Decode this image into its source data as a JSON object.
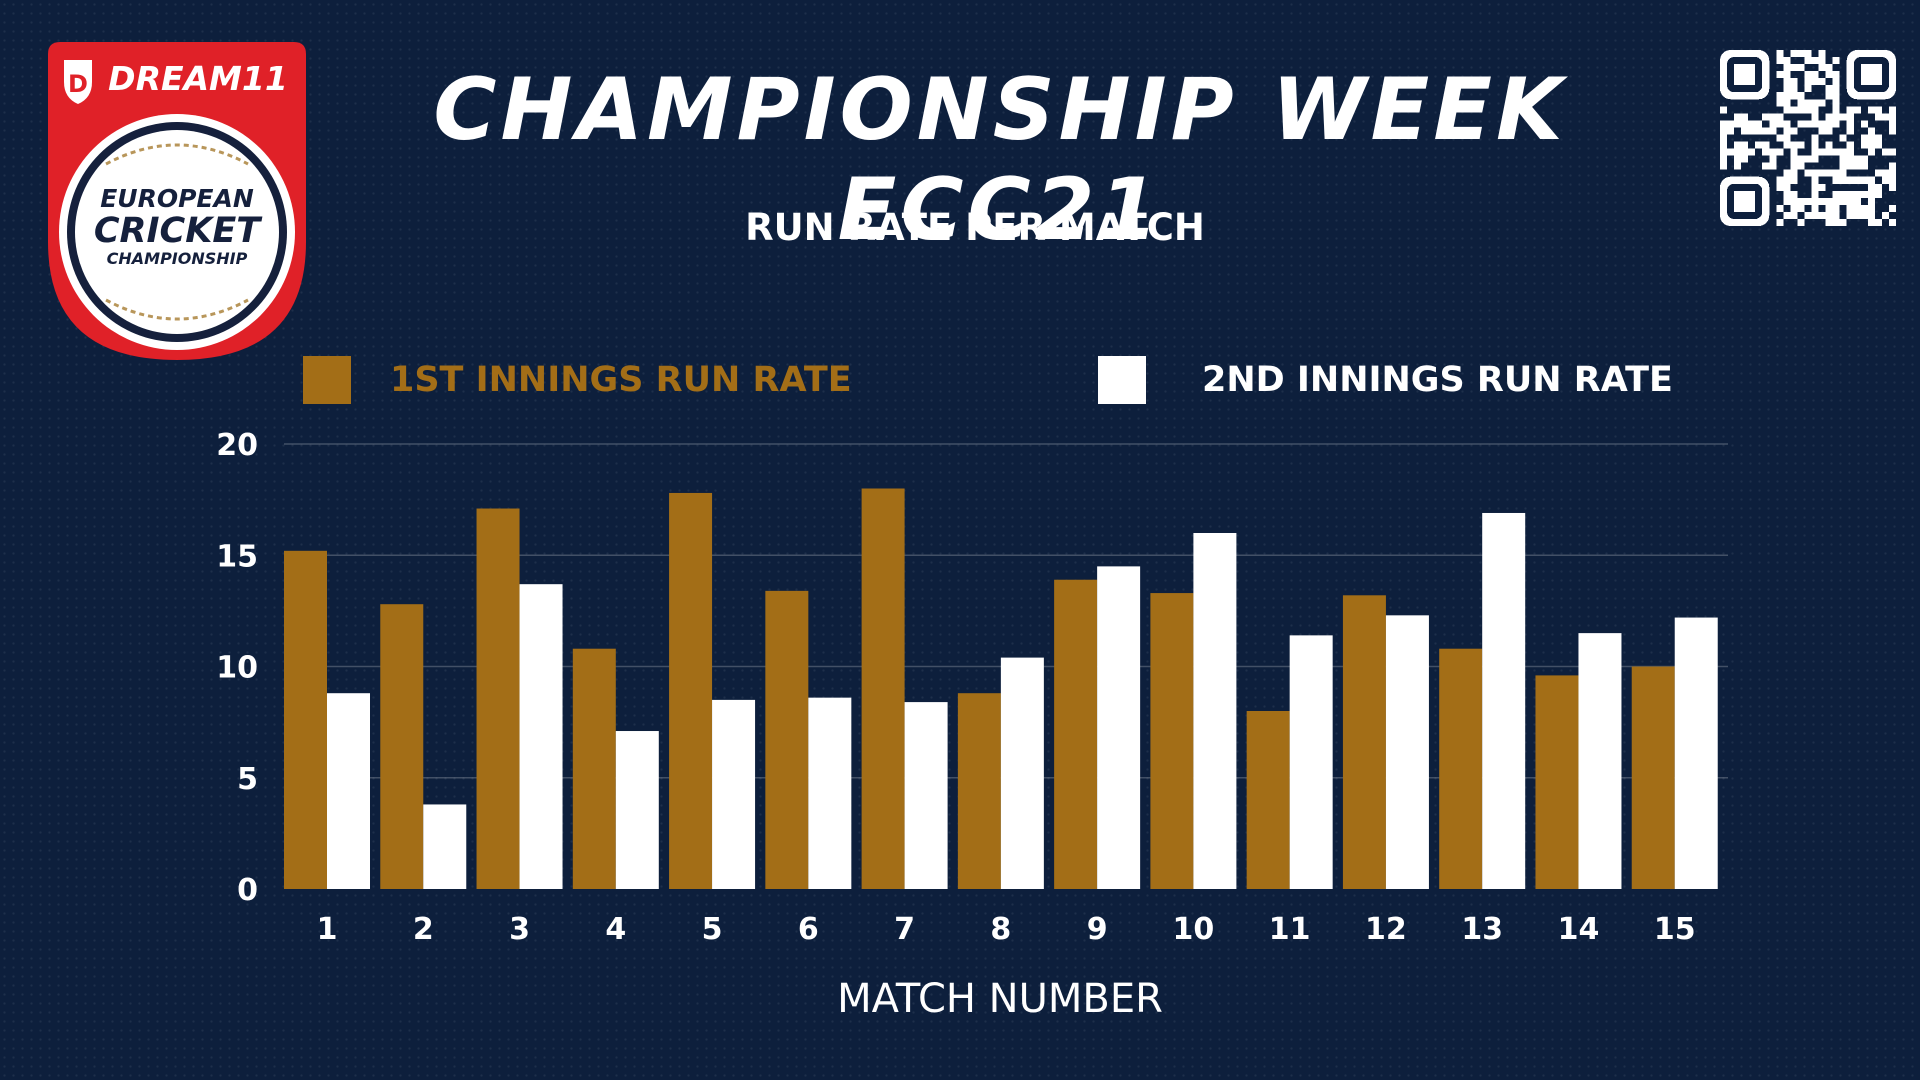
{
  "header": {
    "title": "CHAMPIONSHIP WEEK ECC21",
    "subtitle": "RUN RATE PER MATCH"
  },
  "logo": {
    "brand": "DREAM11",
    "line1": "EUROPEAN",
    "line2": "CRICKET",
    "line3": "CHAMPIONSHIP"
  },
  "colors": {
    "background": "#0d1f3c",
    "series1": "#a36e17",
    "series2": "#ffffff",
    "logo_red": "#e02128",
    "logo_gold": "#b8965a"
  },
  "legend": {
    "item1": "1ST INNINGS RUN RATE",
    "item2": "2ND INNINGS RUN RATE"
  },
  "chart_data": {
    "type": "bar",
    "title": "RUN RATE PER MATCH",
    "xlabel": "MATCH NUMBER",
    "ylabel": "",
    "categories": [
      "1",
      "2",
      "3",
      "4",
      "5",
      "6",
      "7",
      "8",
      "9",
      "10",
      "11",
      "12",
      "13",
      "14",
      "15"
    ],
    "ylim": [
      0,
      20
    ],
    "yticks": [
      0,
      5,
      10,
      15,
      20
    ],
    "grid": true,
    "legend_position": "top",
    "series": [
      {
        "name": "1ST INNINGS RUN RATE",
        "color": "#a36e17",
        "values": [
          15.2,
          12.8,
          17.1,
          10.8,
          17.8,
          13.4,
          18.0,
          8.8,
          13.9,
          13.3,
          8.0,
          13.2,
          10.8,
          9.6,
          10.0
        ]
      },
      {
        "name": "2ND INNINGS RUN RATE",
        "color": "#ffffff",
        "values": [
          8.8,
          3.8,
          13.7,
          7.1,
          8.5,
          8.6,
          8.4,
          10.4,
          14.5,
          16.0,
          11.4,
          12.3,
          16.9,
          11.5,
          12.2
        ]
      }
    ]
  }
}
